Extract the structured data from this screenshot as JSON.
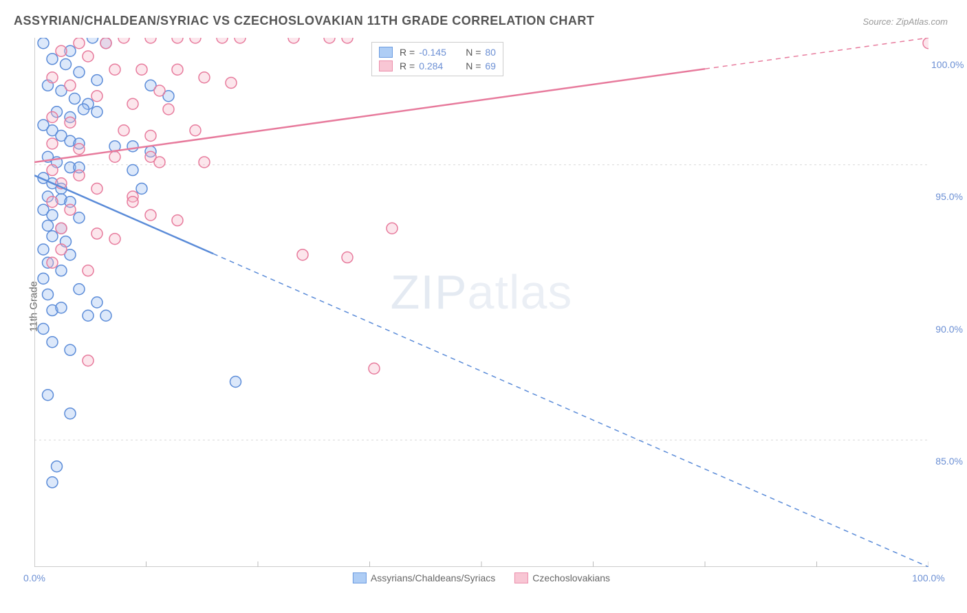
{
  "title": "ASSYRIAN/CHALDEAN/SYRIAC VS CZECHOSLOVAKIAN 11TH GRADE CORRELATION CHART",
  "source": "Source: ZipAtlas.com",
  "y_axis_label": "11th Grade",
  "watermark": {
    "bold": "ZIP",
    "light": "atlas"
  },
  "chart": {
    "type": "scatter",
    "xlim": [
      0,
      100
    ],
    "ylim": [
      81,
      101
    ],
    "x_ticks": [
      0,
      50,
      100
    ],
    "x_tick_labels": [
      "0.0%",
      "",
      "100.0%"
    ],
    "x_minor_ticks": [
      12.5,
      25,
      37.5,
      62.5,
      75,
      87.5
    ],
    "y_ticks": [
      85,
      90,
      95,
      100
    ],
    "y_tick_labels": [
      "85.0%",
      "90.0%",
      "95.0%",
      "100.0%"
    ],
    "y_gridlines": [
      85.8,
      96.2
    ],
    "background_color": "#ffffff",
    "grid_color": "#d8d8d8",
    "axis_color": "#bbbbbb",
    "tick_label_color": "#6b8fd4",
    "marker_radius": 8,
    "marker_stroke_width": 1.5,
    "marker_fill_opacity": 0.35,
    "trend_line_width": 2.5,
    "series": [
      {
        "name": "Assyrians/Chaldeans/Syriacs",
        "color_fill": "#9cbef0",
        "color_stroke": "#5a8bd8",
        "legend_swatch_fill": "#aecdf5",
        "legend_swatch_stroke": "#6b9be0",
        "R": "-0.145",
        "N": "80",
        "trend": {
          "x1": 0,
          "y1": 95.8,
          "x2": 100,
          "y2": 81.0,
          "solid_until_x": 20
        },
        "points": [
          [
            6.5,
            101
          ],
          [
            1,
            100.8
          ],
          [
            8,
            100.8
          ],
          [
            2,
            100.2
          ],
          [
            4,
            100.5
          ],
          [
            3.5,
            100
          ],
          [
            5,
            99.7
          ],
          [
            7,
            99.4
          ],
          [
            1.5,
            99.2
          ],
          [
            3,
            99
          ],
          [
            4.5,
            98.7
          ],
          [
            6,
            98.5
          ],
          [
            2.5,
            98.2
          ],
          [
            5.5,
            98.3
          ],
          [
            4,
            98
          ],
          [
            7,
            98.2
          ],
          [
            13,
            99.2
          ],
          [
            15,
            98.8
          ],
          [
            1,
            97.7
          ],
          [
            2,
            97.5
          ],
          [
            3,
            97.3
          ],
          [
            4,
            97.1
          ],
          [
            5,
            97
          ],
          [
            9,
            96.9
          ],
          [
            11,
            96.9
          ],
          [
            13,
            96.7
          ],
          [
            1.5,
            96.5
          ],
          [
            2.5,
            96.3
          ],
          [
            4,
            96.1
          ],
          [
            5,
            96.1
          ],
          [
            11,
            96
          ],
          [
            1,
            95.7
          ],
          [
            2,
            95.5
          ],
          [
            3,
            95.3
          ],
          [
            12,
            95.3
          ],
          [
            1.5,
            95
          ],
          [
            3,
            94.9
          ],
          [
            4,
            94.8
          ],
          [
            1,
            94.5
          ],
          [
            2,
            94.3
          ],
          [
            5,
            94.2
          ],
          [
            1.5,
            93.9
          ],
          [
            3,
            93.8
          ],
          [
            2,
            93.5
          ],
          [
            3.5,
            93.3
          ],
          [
            1,
            93
          ],
          [
            4,
            92.8
          ],
          [
            1.5,
            92.5
          ],
          [
            3,
            92.2
          ],
          [
            1,
            91.9
          ],
          [
            5,
            91.5
          ],
          [
            1.5,
            91.3
          ],
          [
            7,
            91
          ],
          [
            2,
            90.7
          ],
          [
            6,
            90.5
          ],
          [
            1,
            90
          ],
          [
            3,
            90.8
          ],
          [
            8,
            90.5
          ],
          [
            2,
            89.5
          ],
          [
            4,
            89.2
          ],
          [
            22.5,
            88
          ],
          [
            1.5,
            87.5
          ],
          [
            4,
            86.8
          ],
          [
            2,
            84.2
          ],
          [
            2.5,
            84.8
          ]
        ]
      },
      {
        "name": "Czechoslovakians",
        "color_fill": "#f5b6c8",
        "color_stroke": "#e77a9c",
        "legend_swatch_fill": "#f8c6d4",
        "legend_swatch_stroke": "#ec8fac",
        "R": "0.284",
        "N": "69",
        "trend": {
          "x1": 0,
          "y1": 96.3,
          "x2": 100,
          "y2": 101.0,
          "solid_until_x": 75
        },
        "points": [
          [
            10,
            101
          ],
          [
            13,
            101
          ],
          [
            16,
            101
          ],
          [
            18,
            101
          ],
          [
            21,
            101
          ],
          [
            23,
            101
          ],
          [
            29,
            101
          ],
          [
            33,
            101
          ],
          [
            35,
            101
          ],
          [
            100,
            100.8
          ],
          [
            5,
            100.8
          ],
          [
            8,
            100.8
          ],
          [
            3,
            100.5
          ],
          [
            6,
            100.3
          ],
          [
            9,
            99.8
          ],
          [
            12,
            99.8
          ],
          [
            16,
            99.8
          ],
          [
            19,
            99.5
          ],
          [
            22,
            99.3
          ],
          [
            14,
            99
          ],
          [
            2,
            99.5
          ],
          [
            4,
            99.2
          ],
          [
            7,
            98.8
          ],
          [
            11,
            98.5
          ],
          [
            15,
            98.3
          ],
          [
            2,
            98
          ],
          [
            4,
            97.8
          ],
          [
            10,
            97.5
          ],
          [
            13,
            97.3
          ],
          [
            18,
            97.5
          ],
          [
            2,
            97
          ],
          [
            5,
            96.8
          ],
          [
            9,
            96.5
          ],
          [
            13,
            96.5
          ],
          [
            14,
            96.3
          ],
          [
            19,
            96.3
          ],
          [
            2,
            96
          ],
          [
            5,
            95.8
          ],
          [
            3,
            95.5
          ],
          [
            7,
            95.3
          ],
          [
            11,
            95
          ],
          [
            2,
            94.8
          ],
          [
            4,
            94.5
          ],
          [
            13,
            94.3
          ],
          [
            16,
            94.1
          ],
          [
            3,
            93.8
          ],
          [
            7,
            93.6
          ],
          [
            9,
            93.4
          ],
          [
            40,
            93.8
          ],
          [
            30,
            92.8
          ],
          [
            35,
            92.7
          ],
          [
            3,
            93
          ],
          [
            2,
            92.5
          ],
          [
            6,
            92.2
          ],
          [
            11,
            94.8
          ],
          [
            38,
            88.5
          ],
          [
            6,
            88.8
          ]
        ]
      }
    ]
  },
  "legend_bottom": [
    {
      "label": "Assyrians/Chaldeans/Syriacs",
      "series": 0
    },
    {
      "label": "Czechoslovakians",
      "series": 1
    }
  ]
}
